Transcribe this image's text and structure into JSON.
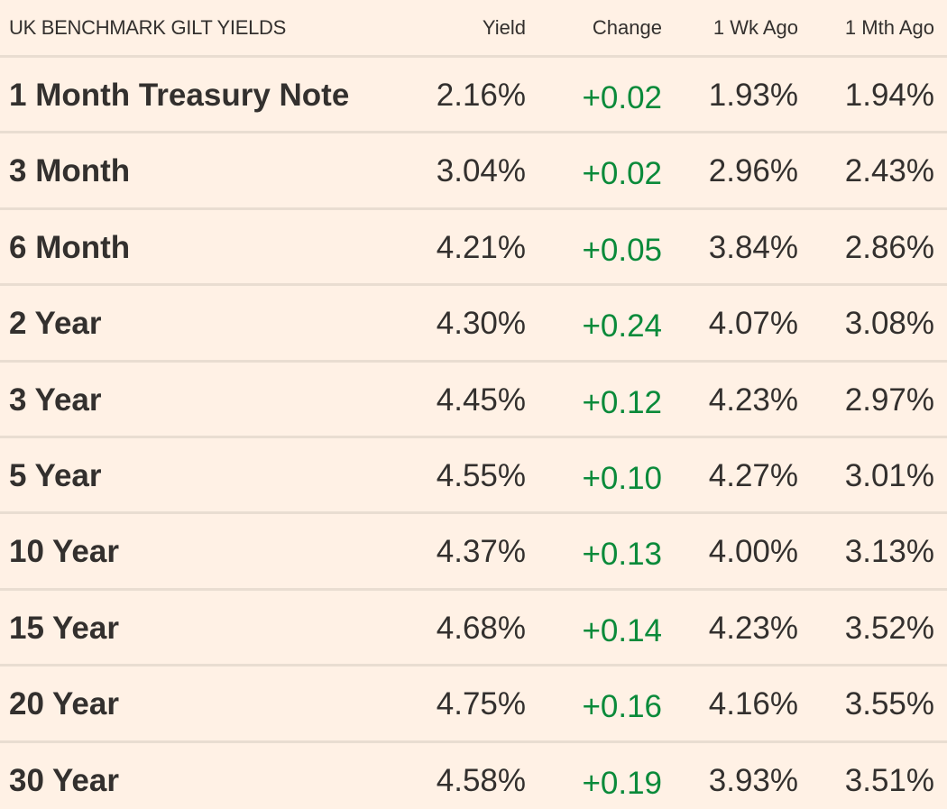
{
  "colors": {
    "background": "#fff1e5",
    "text": "#33302e",
    "positive_change": "#0a8a3a",
    "divider": "#e9ddd1"
  },
  "chart_data": {
    "type": "table",
    "title": "UK BENCHMARK GILT YIELDS",
    "columns": [
      "Yield",
      "Change",
      "1 Wk Ago",
      "1 Mth Ago"
    ],
    "rows": [
      {
        "name": "1 Month Treasury Note",
        "yield": "2.16%",
        "change": "+0.02",
        "wk": "1.93%",
        "mth": "1.94%"
      },
      {
        "name": "3 Month",
        "yield": "3.04%",
        "change": "+0.02",
        "wk": "2.96%",
        "mth": "2.43%"
      },
      {
        "name": "6 Month",
        "yield": "4.21%",
        "change": "+0.05",
        "wk": "3.84%",
        "mth": "2.86%"
      },
      {
        "name": "2 Year",
        "yield": "4.30%",
        "change": "+0.24",
        "wk": "4.07%",
        "mth": "3.08%"
      },
      {
        "name": "3 Year",
        "yield": "4.45%",
        "change": "+0.12",
        "wk": "4.23%",
        "mth": "2.97%"
      },
      {
        "name": "5 Year",
        "yield": "4.55%",
        "change": "+0.10",
        "wk": "4.27%",
        "mth": "3.01%"
      },
      {
        "name": "10 Year",
        "yield": "4.37%",
        "change": "+0.13",
        "wk": "4.00%",
        "mth": "3.13%"
      },
      {
        "name": "15 Year",
        "yield": "4.68%",
        "change": "+0.14",
        "wk": "4.23%",
        "mth": "3.52%"
      },
      {
        "name": "20 Year",
        "yield": "4.75%",
        "change": "+0.16",
        "wk": "4.16%",
        "mth": "3.55%"
      },
      {
        "name": "30 Year",
        "yield": "4.58%",
        "change": "+0.19",
        "wk": "3.93%",
        "mth": "3.51%"
      }
    ]
  }
}
